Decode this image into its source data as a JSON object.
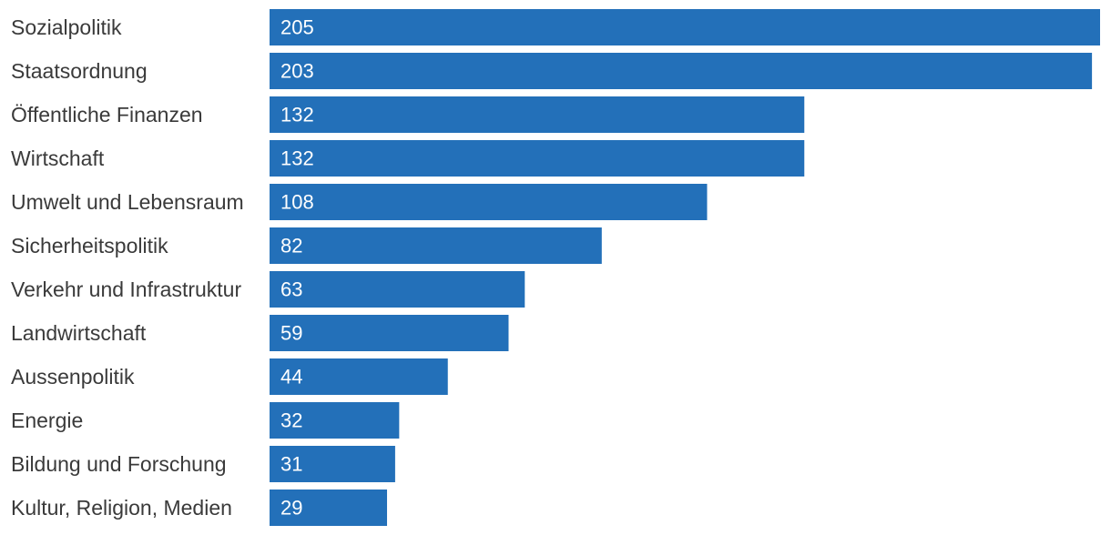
{
  "chart_data": {
    "type": "bar",
    "orientation": "horizontal",
    "categories": [
      "Sozialpolitik",
      "Staatsordnung",
      "Öffentliche Finanzen",
      "Wirtschaft",
      "Umwelt und Lebensraum",
      "Sicherheitspolitik",
      "Verkehr und Infrastruktur",
      "Landwirtschaft",
      "Aussenpolitik",
      "Energie",
      "Bildung und Forschung",
      "Kultur, Religion, Medien"
    ],
    "values": [
      205,
      203,
      132,
      132,
      108,
      82,
      63,
      59,
      44,
      32,
      31,
      29
    ],
    "data_labels": [
      "205",
      "203",
      "132",
      "132",
      "108",
      "82",
      "63",
      "59",
      "44",
      "32",
      "31",
      "29"
    ],
    "title": "",
    "xlabel": "",
    "ylabel": "",
    "xlim": [
      0,
      205
    ],
    "grid": false,
    "legend": "none",
    "colors": {
      "bar": "#2370b9",
      "category_text": "#3a3a3a",
      "value_text": "#ffffff"
    }
  }
}
